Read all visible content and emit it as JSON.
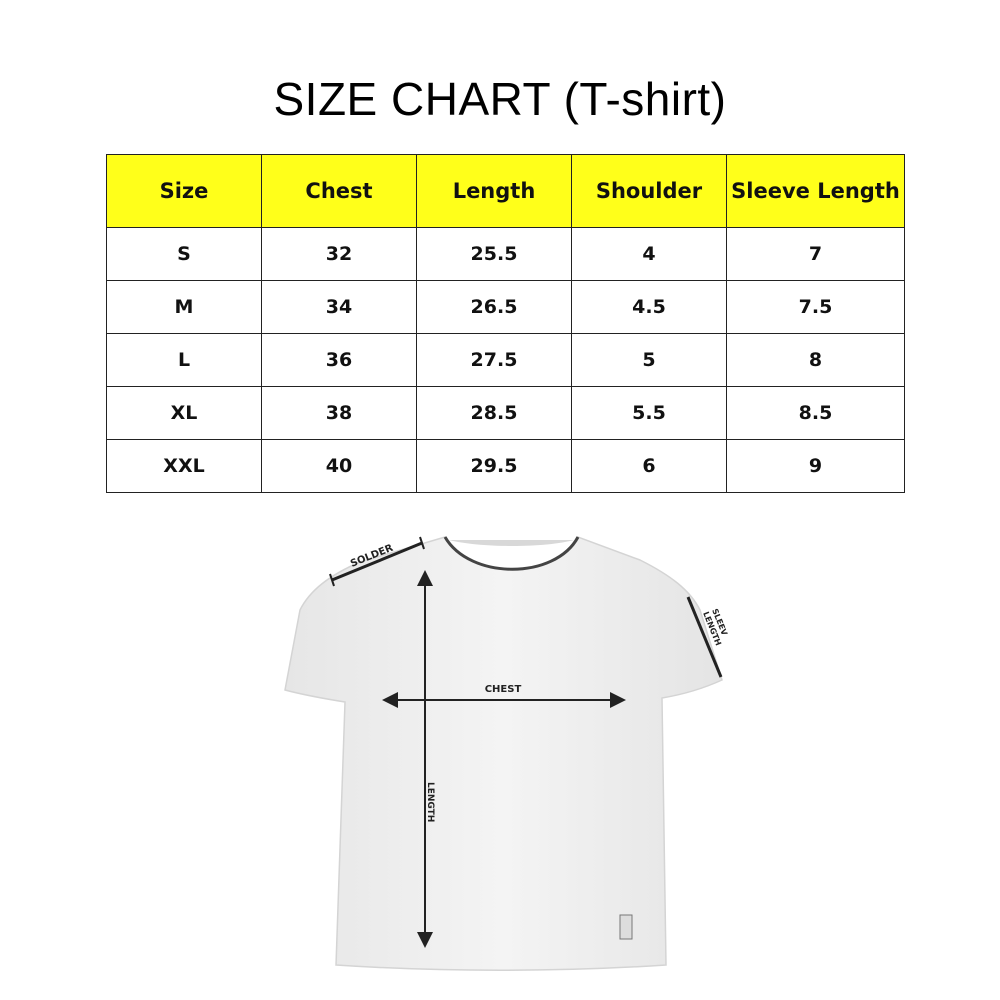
{
  "title": "SIZE CHART (T-shirt)",
  "table": {
    "headers": [
      "Size",
      "Chest",
      "Length",
      "Shoulder",
      "Sleeve Length"
    ],
    "rows": [
      [
        "S",
        "32",
        "25.5",
        "4",
        "7"
      ],
      [
        "M",
        "34",
        "26.5",
        "4.5",
        "7.5"
      ],
      [
        "L",
        "36",
        "27.5",
        "5",
        "8"
      ],
      [
        "XL",
        "38",
        "28.5",
        "5.5",
        "8.5"
      ],
      [
        "XXL",
        "40",
        "29.5",
        "6",
        "9"
      ]
    ]
  },
  "diagram": {
    "shoulder_label": "SOLDER",
    "chest_label": "CHEST",
    "length_label": "LENGTH",
    "sleeve_label_line1": "SLEEV",
    "sleeve_label_line2": "LENGTH"
  },
  "colors": {
    "header_bg": "#ffff1a"
  }
}
